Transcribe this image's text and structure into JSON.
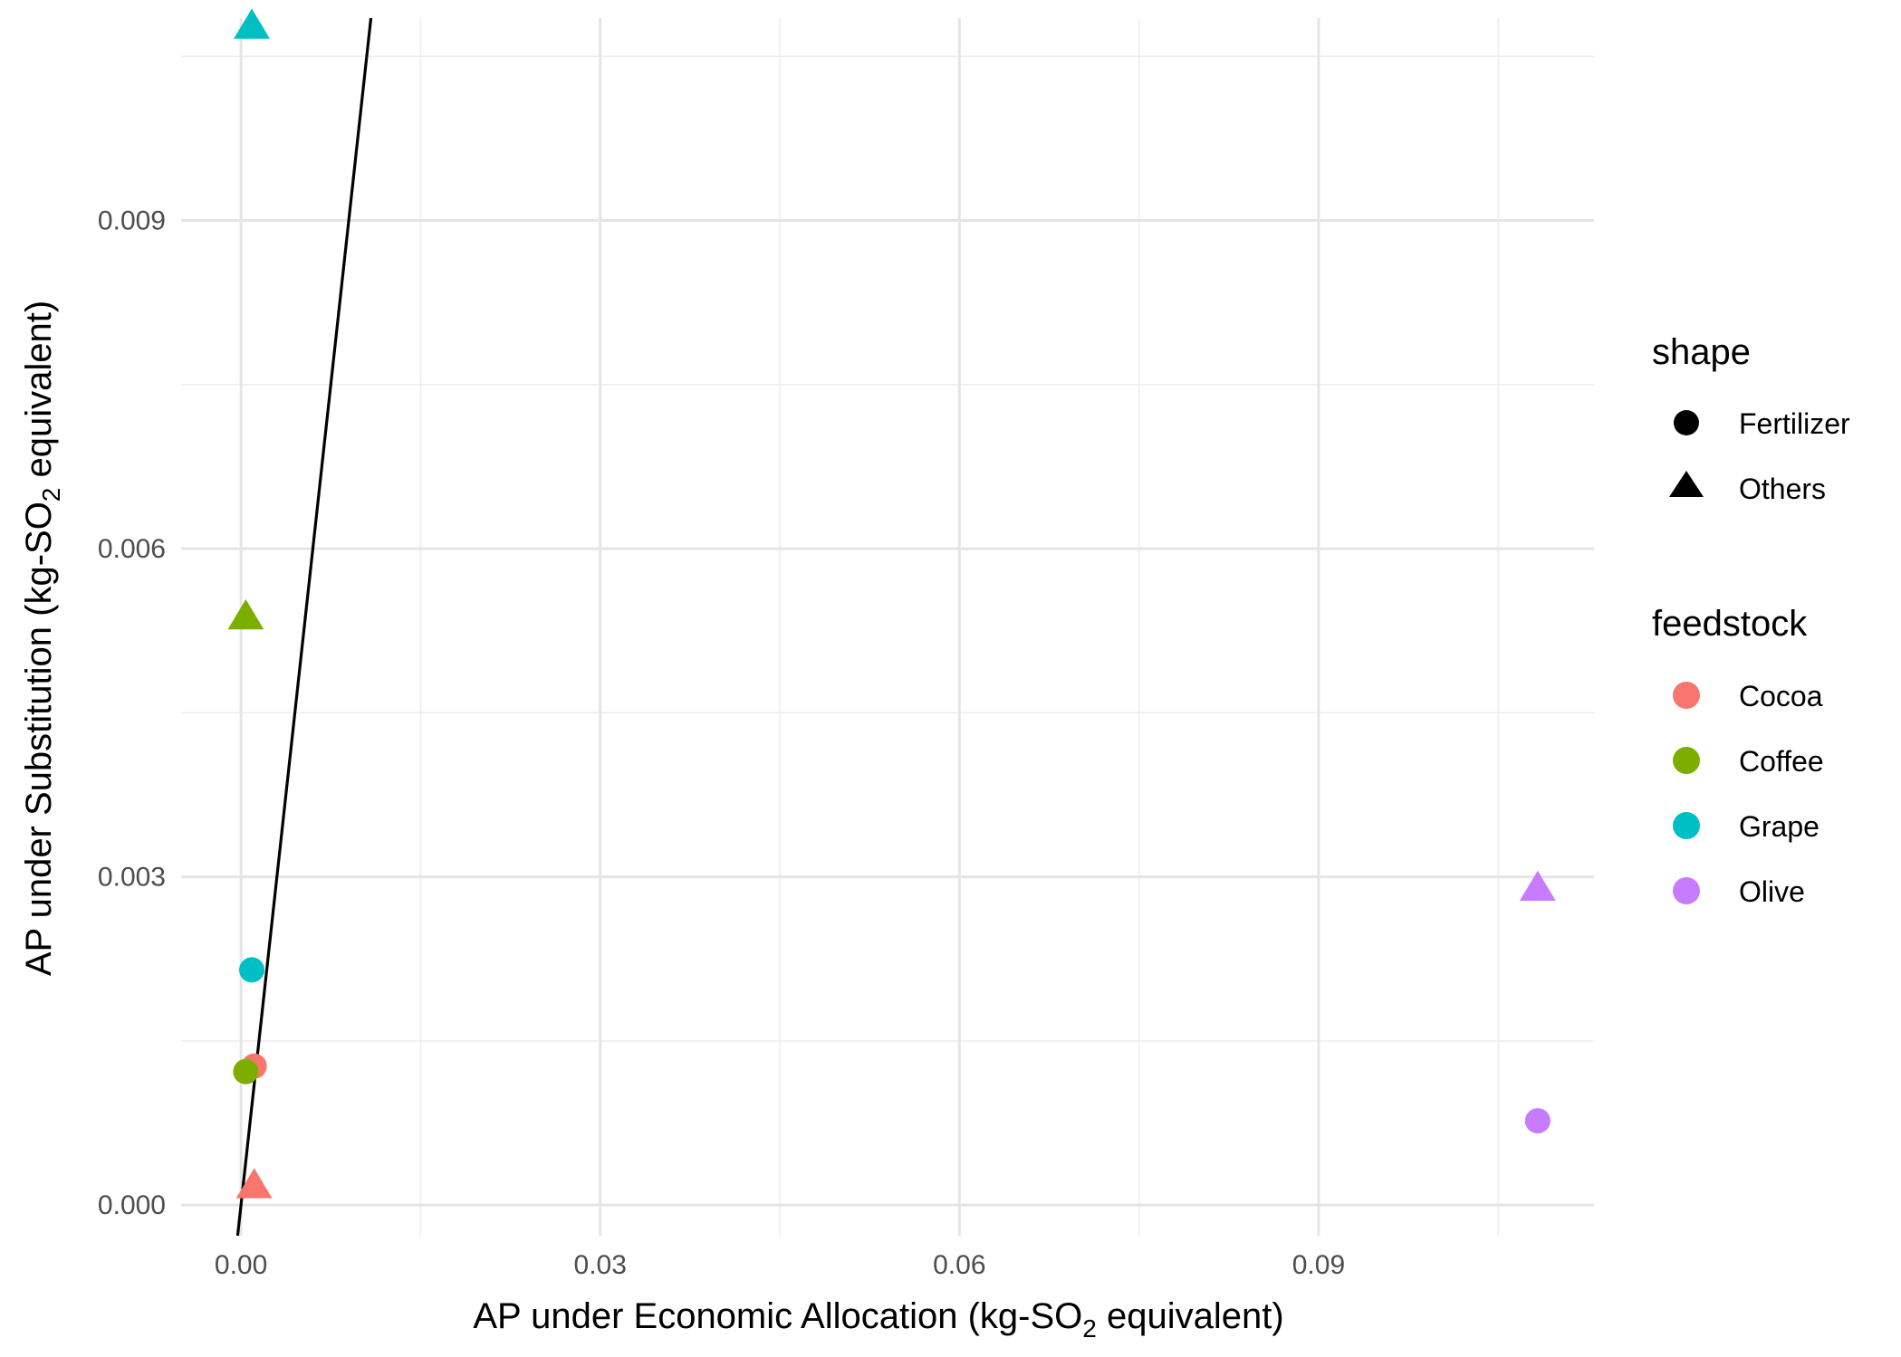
{
  "chart_data": {
    "type": "scatter",
    "title": "",
    "xlabel": {
      "before": "AP under Economic Allocation (kg-SO",
      "sub": "2",
      "after": " equivalent)"
    },
    "ylabel": {
      "before": "AP under Substitution (kg-SO",
      "sub": "2",
      "after": " equivalent)"
    },
    "xlim": [
      -0.005,
      0.113
    ],
    "ylim": [
      -0.00028,
      0.01085
    ],
    "x_ticks": [
      0.0,
      0.03,
      0.06,
      0.09
    ],
    "x_tick_labels": [
      "0.00",
      "0.03",
      "0.06",
      "0.09"
    ],
    "y_ticks": [
      0.0,
      0.003,
      0.006,
      0.009
    ],
    "y_tick_labels": [
      "0.000",
      "0.003",
      "0.006",
      "0.009"
    ],
    "grid": true,
    "reference_line": {
      "slope": 1,
      "intercept": 0,
      "color": "#000000"
    },
    "colors": {
      "Cocoa": "#F8766D",
      "Coffee": "#7CAE00",
      "Grape": "#00BFC4",
      "Olive": "#C77CFF"
    },
    "points": [
      {
        "feedstock": "Cocoa",
        "shape": "Others",
        "x": 0.0011,
        "y": 0.00018
      },
      {
        "feedstock": "Cocoa",
        "shape": "Fertilizer",
        "x": 0.0011,
        "y": 0.00127
      },
      {
        "feedstock": "Coffee",
        "shape": "Fertilizer",
        "x": 0.0004,
        "y": 0.00122
      },
      {
        "feedstock": "Coffee",
        "shape": "Others",
        "x": 0.0004,
        "y": 0.00538
      },
      {
        "feedstock": "Grape",
        "shape": "Fertilizer",
        "x": 0.0009,
        "y": 0.00215
      },
      {
        "feedstock": "Grape",
        "shape": "Others",
        "x": 0.0009,
        "y": 0.01078
      },
      {
        "feedstock": "Olive",
        "shape": "Fertilizer",
        "x": 0.1083,
        "y": 0.00077
      },
      {
        "feedstock": "Olive",
        "shape": "Others",
        "x": 0.1083,
        "y": 0.0029
      }
    ],
    "legend": {
      "placement": "right",
      "shape": {
        "title": "shape",
        "items": [
          {
            "label": "Fertilizer",
            "symbol": "circle"
          },
          {
            "label": "Others",
            "symbol": "triangle"
          }
        ]
      },
      "feedstock": {
        "title": "feedstock",
        "items": [
          "Cocoa",
          "Coffee",
          "Grape",
          "Olive"
        ]
      }
    }
  }
}
